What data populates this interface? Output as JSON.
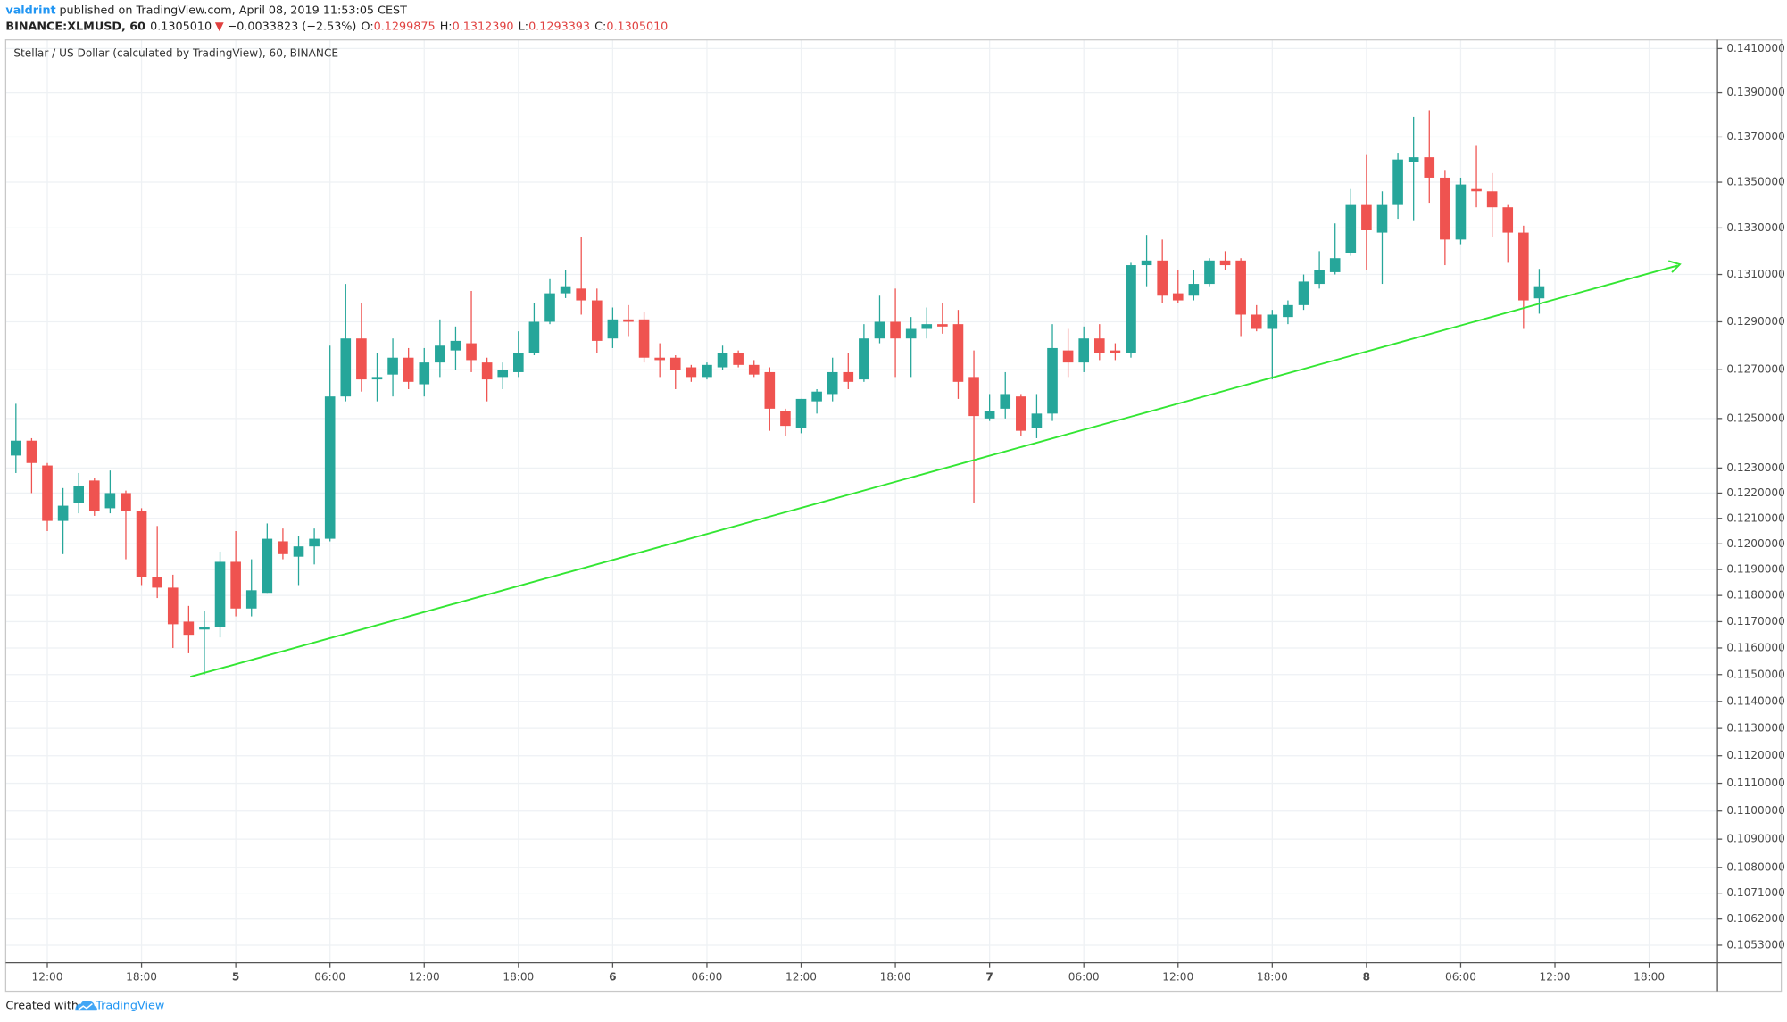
{
  "header": {
    "author": "valdrint",
    "published": "published on TradingView.com, April 08, 2019 11:53:05 CEST",
    "symbol": "BINANCE:XLMUSD, 60",
    "last": "0.1305010",
    "change_arrow": "▼",
    "change": "−0.0033823 (−2.53%)",
    "o_label": "O:",
    "o": "0.1299875",
    "h_label": "H:",
    "h": "0.1312390",
    "l_label": "L:",
    "l": "0.1293393",
    "c_label": "C:",
    "c": "0.1305010"
  },
  "footer": {
    "created": "Created with",
    "brand": "TradingView"
  },
  "chart_data": {
    "type": "candlestick",
    "title": "Stellar / US Dollar (calculated by TradingView), 60, BINANCE",
    "categories": [
      null,
      null,
      "12:00",
      null,
      null,
      null,
      null,
      null,
      "18:00",
      null,
      null,
      null,
      null,
      null,
      "5",
      null,
      null,
      null,
      null,
      null,
      "06:00",
      null,
      null,
      null,
      null,
      null,
      "12:00",
      null,
      null,
      null,
      null,
      null,
      "18:00",
      null,
      null,
      null,
      null,
      null,
      "6",
      null,
      null,
      null,
      null,
      null,
      "06:00",
      null,
      null,
      null,
      null,
      null,
      "12:00",
      null,
      null,
      null,
      null,
      null,
      "18:00",
      null,
      null,
      null,
      null,
      null,
      "7",
      null,
      null,
      null,
      null,
      null,
      "06:00",
      null,
      null,
      null,
      null,
      null,
      "12:00",
      null,
      null,
      null,
      null,
      null,
      "18:00",
      null,
      null,
      null,
      null,
      null,
      "8",
      null,
      null,
      null,
      null,
      null,
      "06:00",
      null,
      null,
      null,
      null,
      null,
      "12:00",
      null,
      null,
      null,
      null,
      null,
      "18:00",
      null,
      null,
      null,
      null
    ],
    "open": [
      0.1235,
      0.1241,
      0.1231,
      0.1209,
      0.1216,
      0.1225,
      0.1214,
      0.122,
      0.1213,
      0.1187,
      0.1183,
      0.117,
      0.1167,
      0.1168,
      0.1193,
      0.1175,
      0.1181,
      0.1201,
      0.1195,
      0.1199,
      0.1202,
      0.1259,
      0.1283,
      0.1266,
      0.1268,
      0.1275,
      0.1264,
      0.1273,
      0.1278,
      0.1281,
      0.1273,
      0.1267,
      0.1269,
      0.1277,
      0.129,
      0.1302,
      0.1304,
      0.1299,
      0.1283,
      0.1291,
      0.1291,
      0.1275,
      0.1275,
      0.1271,
      0.1267,
      0.1271,
      0.1277,
      0.1272,
      0.1269,
      0.1253,
      0.1246,
      0.1257,
      0.126,
      0.1269,
      0.1266,
      0.1283,
      0.129,
      0.1283,
      0.1287,
      0.1289,
      0.1289,
      0.1267,
      0.125,
      0.1254,
      0.1259,
      0.1246,
      0.1252,
      0.1278,
      0.1273,
      0.1283,
      0.1278,
      0.1277,
      0.1314,
      0.1316,
      0.1302,
      0.1301,
      0.1306,
      0.1316,
      0.1316,
      0.1293,
      0.1287,
      0.1292,
      0.1297,
      0.1306,
      0.1311,
      0.1319,
      0.134,
      0.1328,
      0.134,
      0.1359,
      0.1361,
      0.1352,
      0.1325,
      0.1347,
      0.1346,
      0.1339,
      0.1328,
      0.1299875,
      null,
      null,
      null,
      null,
      null,
      null,
      null,
      null,
      null,
      null,
      null
    ],
    "high": [
      0.1256,
      0.1242,
      0.1232,
      0.1222,
      0.1228,
      0.1226,
      0.1229,
      0.1221,
      0.1214,
      0.1207,
      0.1188,
      0.1176,
      0.1174,
      0.1197,
      0.1205,
      0.1194,
      0.1208,
      0.1206,
      0.1203,
      0.1206,
      0.128,
      0.1306,
      0.1298,
      0.1277,
      0.1283,
      0.1279,
      0.1279,
      0.1291,
      0.1288,
      0.1303,
      0.1275,
      0.1273,
      0.1286,
      0.1298,
      0.1308,
      0.1312,
      0.1326,
      0.1304,
      0.1296,
      0.1297,
      0.1294,
      0.1281,
      0.1276,
      0.1272,
      0.1273,
      0.128,
      0.1278,
      0.1274,
      0.1271,
      0.1254,
      0.1258,
      0.1262,
      0.1275,
      0.1277,
      0.1289,
      0.1301,
      0.1304,
      0.1292,
      0.1296,
      0.1298,
      0.1295,
      0.1278,
      0.126,
      0.1269,
      0.126,
      0.126,
      0.1289,
      0.1287,
      0.1288,
      0.1289,
      0.1281,
      0.1315,
      0.1327,
      0.1325,
      0.1312,
      0.1312,
      0.1317,
      0.132,
      0.1317,
      0.1297,
      0.1295,
      0.1299,
      0.131,
      0.132,
      0.1332,
      0.1347,
      0.1362,
      0.1346,
      0.1363,
      0.1379,
      0.1382,
      0.1355,
      0.1352,
      0.1366,
      0.1354,
      0.134,
      0.1331,
      0.131239,
      null,
      null,
      null,
      null,
      null,
      null,
      null,
      null,
      null,
      null,
      null
    ],
    "low": [
      0.1228,
      0.122,
      0.1205,
      0.1196,
      0.1212,
      0.1211,
      0.1212,
      0.1194,
      0.1184,
      0.1179,
      0.116,
      0.1158,
      0.115,
      0.1164,
      0.1172,
      0.1172,
      0.1181,
      0.1194,
      0.1184,
      0.1192,
      0.1201,
      0.1257,
      0.1261,
      0.1257,
      0.1259,
      0.1262,
      0.1259,
      0.1267,
      0.127,
      0.1269,
      0.1257,
      0.1262,
      0.1267,
      0.1276,
      0.1289,
      0.13,
      0.1293,
      0.1277,
      0.1279,
      0.1284,
      0.1273,
      0.1267,
      0.1262,
      0.1265,
      0.1266,
      0.127,
      0.1271,
      0.1267,
      0.1245,
      0.1243,
      0.1244,
      0.1252,
      0.1257,
      0.1262,
      0.1265,
      0.1281,
      0.1267,
      0.1267,
      0.1283,
      0.1285,
      0.1258,
      0.1216,
      0.1249,
      0.125,
      0.1243,
      0.1242,
      0.1249,
      0.1267,
      0.1269,
      0.1274,
      0.1274,
      0.1275,
      0.1305,
      0.1298,
      0.1298,
      0.1299,
      0.1305,
      0.1312,
      0.1284,
      0.1286,
      0.1266,
      0.1289,
      0.1295,
      0.1304,
      0.131,
      0.1318,
      0.1312,
      0.1306,
      0.1334,
      0.1333,
      0.1341,
      0.1314,
      0.1323,
      0.1339,
      0.1326,
      0.1315,
      0.1287,
      0.1293393,
      null,
      null,
      null,
      null,
      null,
      null,
      null,
      null,
      null,
      null,
      null
    ],
    "close": [
      0.1241,
      0.1232,
      0.1209,
      0.1215,
      0.1223,
      0.1213,
      0.122,
      0.1213,
      0.1187,
      0.1183,
      0.1169,
      0.1165,
      0.1168,
      0.1193,
      0.1175,
      0.1182,
      0.1202,
      0.1196,
      0.1199,
      0.1202,
      0.1259,
      0.1283,
      0.1266,
      0.1267,
      0.1275,
      0.1265,
      0.1273,
      0.128,
      0.1282,
      0.1274,
      0.1266,
      0.127,
      0.1277,
      0.129,
      0.1302,
      0.1305,
      0.1299,
      0.1282,
      0.1291,
      0.129,
      0.1275,
      0.1274,
      0.127,
      0.1267,
      0.1272,
      0.1277,
      0.1272,
      0.1268,
      0.1254,
      0.1247,
      0.1258,
      0.1261,
      0.1269,
      0.1265,
      0.1283,
      0.129,
      0.1283,
      0.1287,
      0.1289,
      0.1288,
      0.1265,
      0.1251,
      0.1253,
      0.126,
      0.1245,
      0.1252,
      0.1279,
      0.1273,
      0.1283,
      0.1277,
      0.1277,
      0.1314,
      0.1316,
      0.1301,
      0.1299,
      0.1306,
      0.1316,
      0.1314,
      0.1293,
      0.1287,
      0.1293,
      0.1297,
      0.1307,
      0.1312,
      0.1317,
      0.134,
      0.1329,
      0.134,
      0.136,
      0.1361,
      0.1352,
      0.1325,
      0.1349,
      0.1346,
      0.1339,
      0.1328,
      0.1299,
      0.130501,
      null,
      null,
      null,
      null,
      null,
      null,
      null,
      null,
      null,
      null,
      null
    ],
    "up_color": "#26a69a",
    "down_color": "#ef5350",
    "log_scale": true,
    "grid": true,
    "ylim": [
      0.1047,
      0.1414
    ],
    "yticks": [
      {
        "value": 0.141,
        "label": "0.1410000"
      },
      {
        "value": 0.139,
        "label": "0.1390000"
      },
      {
        "value": 0.137,
        "label": "0.1370000"
      },
      {
        "value": 0.135,
        "label": "0.1350000"
      },
      {
        "value": 0.133,
        "label": "0.1330000"
      },
      {
        "value": 0.131,
        "label": "0.1310000"
      },
      {
        "value": 0.129,
        "label": "0.1290000"
      },
      {
        "value": 0.127,
        "label": "0.1270000"
      },
      {
        "value": 0.125,
        "label": "0.1250000"
      },
      {
        "value": 0.123,
        "label": "0.1230000"
      },
      {
        "value": 0.122,
        "label": "0.1220000"
      },
      {
        "value": 0.121,
        "label": "0.1210000"
      },
      {
        "value": 0.12,
        "label": "0.1200000"
      },
      {
        "value": 0.119,
        "label": "0.1190000"
      },
      {
        "value": 0.118,
        "label": "0.1180000"
      },
      {
        "value": 0.117,
        "label": "0.1170000"
      },
      {
        "value": 0.116,
        "label": "0.1160000"
      },
      {
        "value": 0.115,
        "label": "0.1150000"
      },
      {
        "value": 0.114,
        "label": "0.1140000"
      },
      {
        "value": 0.113,
        "label": "0.1130000"
      },
      {
        "value": 0.112,
        "label": "0.1120000"
      },
      {
        "value": 0.111,
        "label": "0.1110000"
      },
      {
        "value": 0.11,
        "label": "0.1100000"
      },
      {
        "value": 0.109,
        "label": "0.1090000"
      },
      {
        "value": 0.108,
        "label": "0.1080000"
      },
      {
        "value": 0.1071,
        "label": "0.1071000"
      },
      {
        "value": 0.1062,
        "label": "0.1062000"
      },
      {
        "value": 0.1053,
        "label": "0.1053000"
      }
    ]
  }
}
